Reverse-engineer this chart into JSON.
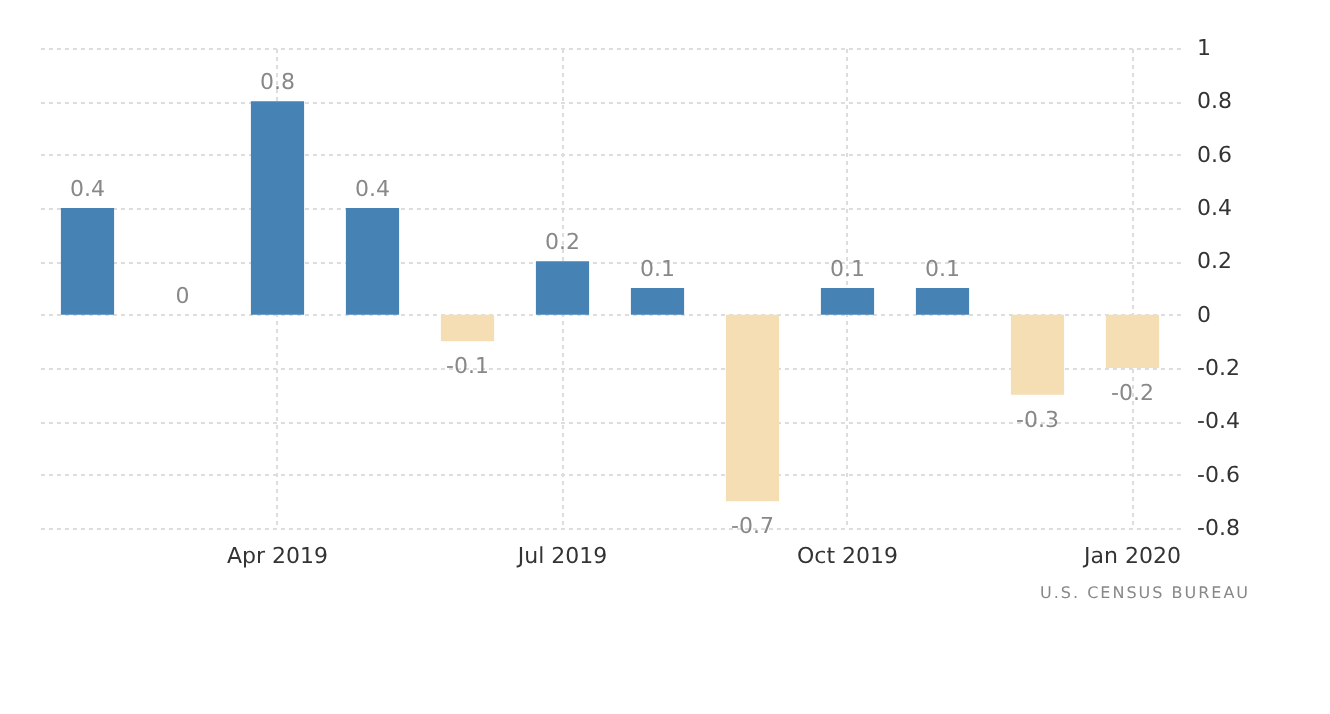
{
  "chart_data": {
    "type": "bar",
    "categories": [
      null,
      null,
      "Apr 2019",
      null,
      null,
      "Jul 2019",
      null,
      null,
      "Oct 2019",
      null,
      null,
      "Jan 2020"
    ],
    "values": [
      0.4,
      0,
      0.8,
      0.4,
      -0.1,
      0.2,
      0.1,
      -0.7,
      0.1,
      0.1,
      -0.3,
      -0.2
    ],
    "colors": [
      "#4682b4",
      "#4682b4",
      "#4682b4",
      "#4682b4",
      "#f5deb3",
      "#4682b4",
      "#4682b4",
      "#f5deb3",
      "#4682b4",
      "#4682b4",
      "#f5deb3",
      "#f5deb3"
    ],
    "ylim": [
      -0.8,
      1
    ],
    "yticks": [
      -0.8,
      -0.6,
      -0.4,
      -0.2,
      0,
      0.2,
      0.4,
      0.6,
      0.8,
      1
    ],
    "grid": true,
    "data_labels": true,
    "annotations": [
      "U.S. CENSUS BUREAU"
    ]
  }
}
